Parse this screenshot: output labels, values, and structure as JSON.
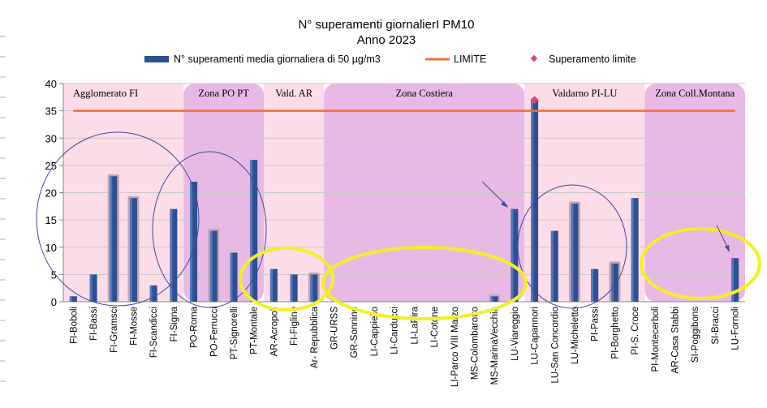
{
  "chart_data": {
    "type": "bar",
    "title": "N° superamenti giornalierI PM10",
    "subtitle": "Anno 2023",
    "xlabel": "",
    "ylabel": "",
    "ylim": [
      0,
      40
    ],
    "yticks": [
      0,
      5,
      10,
      15,
      20,
      25,
      30,
      35,
      40
    ],
    "grid": true,
    "legend_position": "top",
    "categories": [
      "FI-Boboli",
      "FI-Bassi",
      "FI-Gramsci",
      "FI-Mosse",
      "FI-Scandicci",
      "FI-Signa",
      "PO-Roma",
      "PO-Ferrucci",
      "PT-Signorelli",
      "PT-Montale",
      "AR-Acropoli",
      "FI-Figline",
      "Ar- Repubblica",
      "GR-URSS",
      "GR-Sonnino",
      "LI-Cappiello",
      "LI-Carducci",
      "LI-LaPira",
      "LI-Cotone",
      "LI-Parco VIII Marzo",
      "MS-Colombarotto",
      "MS-MarinaVecchia",
      "LU-Viareggio",
      "LU-Capannori",
      "LU-San Concordio",
      "LU-Micheletto",
      "PI-Passi",
      "PI-Borghetto",
      "PI-S. Croce",
      "PI-Montecerboli",
      "AR-Casa Stabbi",
      "SI-Poggibons",
      "SI-Bracci",
      "LU-Fornoli"
    ],
    "series": [
      {
        "name": "N° superamenti media giornaliera di 50 µg/m3",
        "color": "#2e4f91",
        "values": [
          1,
          5,
          23,
          19,
          3,
          17,
          22,
          13,
          9,
          26,
          6,
          5,
          5,
          0,
          0,
          0,
          0,
          0,
          0,
          0,
          0,
          1,
          17,
          37,
          13,
          18,
          6,
          7,
          19,
          0,
          0,
          0,
          0,
          8
        ]
      }
    ],
    "highlighted_bars": [
      2,
      3,
      7,
      12,
      21,
      25,
      27
    ],
    "limit": {
      "name": "LIMITE",
      "value": 35,
      "color": "#ef6c3a"
    },
    "exceedance": {
      "name": "Superamento limite",
      "index": 23,
      "value": 37,
      "color": "#e0466d"
    },
    "zones": [
      {
        "label": "Agglomerato FI",
        "start": 0,
        "end": 5,
        "color": "#fcdce8"
      },
      {
        "label": "Zona PO PT",
        "start": 6,
        "end": 9,
        "color": "#e9b9e6"
      },
      {
        "label": "Vald. AR",
        "start": 10,
        "end": 12,
        "color": "#fcdce8"
      },
      {
        "label": "Zona Costiera",
        "start": 13,
        "end": 22,
        "color": "#e9b9e6"
      },
      {
        "label": "Valdarno PI-LU",
        "start": 23,
        "end": 28,
        "color": "#fcdce8"
      },
      {
        "label": "Zona Coll.Montana",
        "start": 29,
        "end": 33,
        "color": "#e9b9e6"
      }
    ]
  }
}
